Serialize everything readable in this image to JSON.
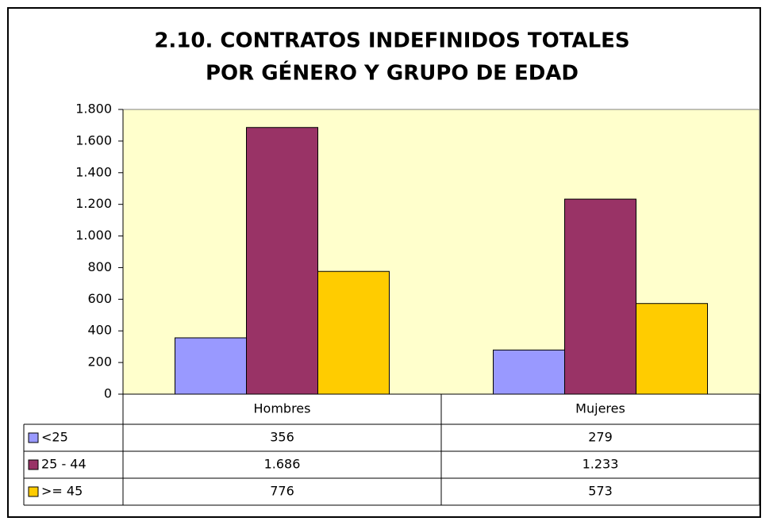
{
  "chart_data": {
    "type": "bar",
    "title": [
      "2.10. CONTRATOS INDEFINIDOS TOTALES",
      "POR GÉNERO Y GRUPO DE EDAD"
    ],
    "categories": [
      "Hombres",
      "Mujeres"
    ],
    "series": [
      {
        "name": "<25",
        "color": "#9999ff",
        "values": [
          356,
          279
        ]
      },
      {
        "name": "25 - 44",
        "color": "#993366",
        "values": [
          1686,
          1233
        ],
        "value_labels": [
          "1.686",
          "1.233"
        ]
      },
      {
        "name": ">= 45",
        "color": "#ffcc00",
        "values": [
          776,
          573
        ]
      }
    ],
    "ylim": [
      0,
      1800
    ],
    "yticks": [
      0,
      200,
      400,
      600,
      800,
      {
        "value": 1000,
        "label": "1.000"
      },
      {
        "value": 1200,
        "label": "1.200"
      },
      {
        "value": 1400,
        "label": "1.400"
      },
      {
        "value": 1600,
        "label": "1.600"
      },
      {
        "value": 1800,
        "label": "1.800"
      }
    ],
    "plot_background": "#ffffcc",
    "data_table": true
  }
}
